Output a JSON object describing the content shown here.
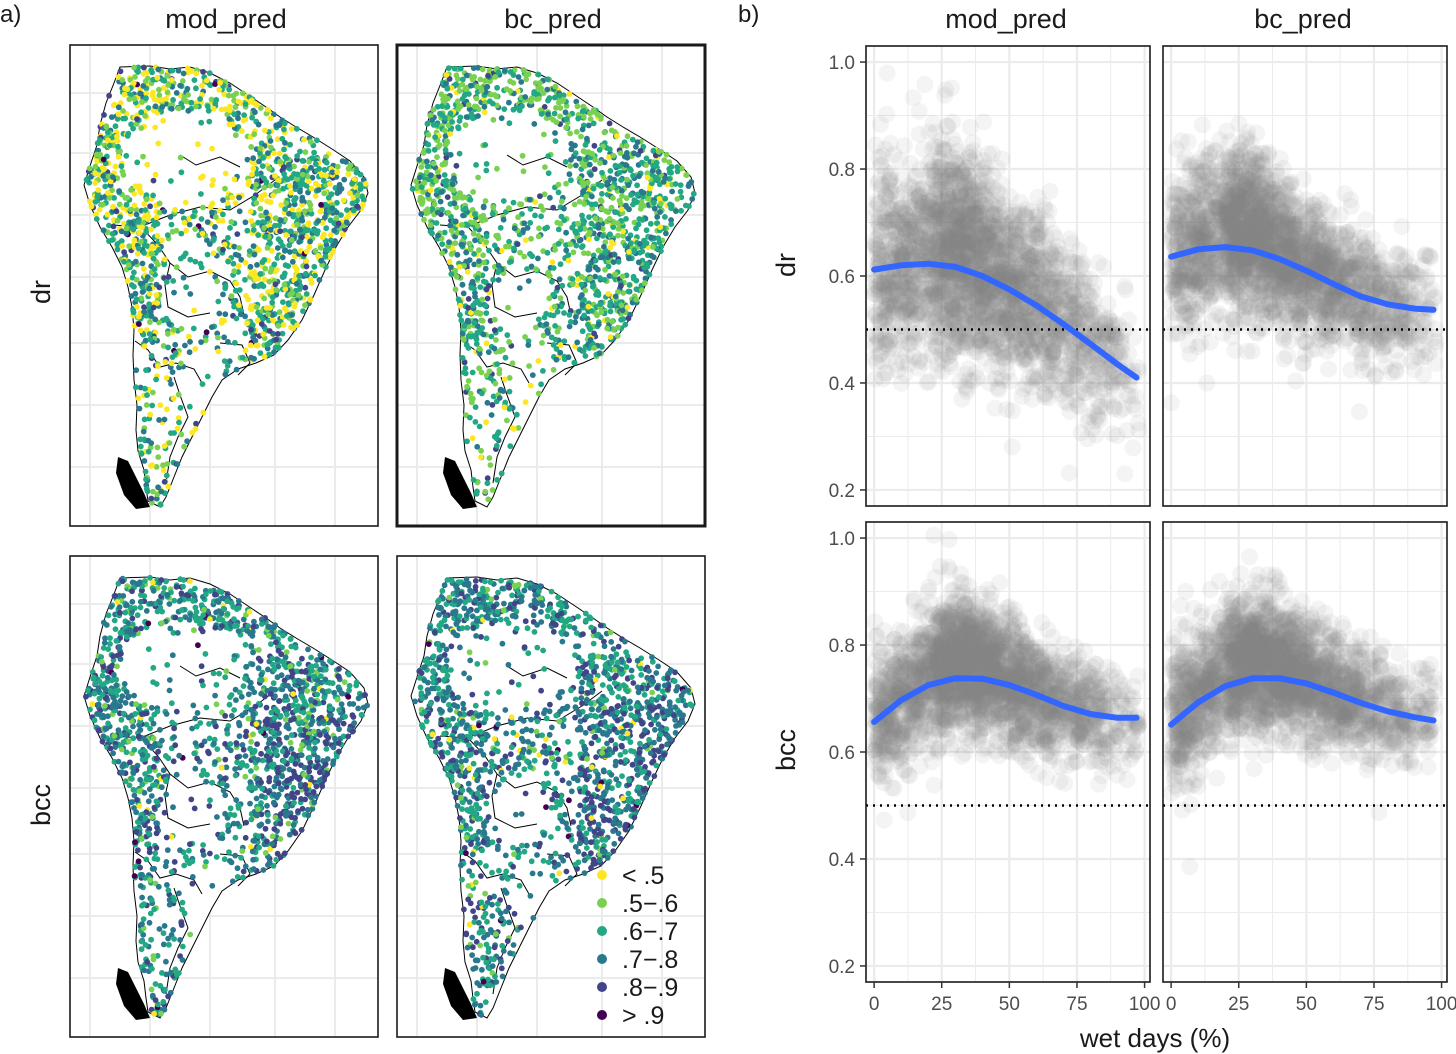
{
  "figure": {
    "panel_a_tag": "a)",
    "panel_b_tag": "b)",
    "col_labels": [
      "mod_pred",
      "bc_pred"
    ],
    "row_labels": [
      "dr",
      "bcc"
    ],
    "legend": [
      {
        "label": "< .5",
        "color": "#fde725"
      },
      {
        "label": ".5−.6",
        "color": "#7ad151"
      },
      {
        "label": ".6−.7",
        "color": "#22a884"
      },
      {
        "label": ".7−.8",
        "color": "#2a788e"
      },
      {
        "label": ".8−.9",
        "color": "#414487"
      },
      {
        "label": "> .9",
        "color": "#440154"
      }
    ],
    "colors": {
      "smooth": "#3366ff",
      "points": "#808080",
      "grid": "#ebebeb",
      "border": "#333333",
      "map_land": "#ffffff",
      "map_outline": "#000000"
    }
  },
  "chart_data": [
    {
      "type": "map",
      "title": "a)",
      "facets": [
        {
          "col": "mod_pred",
          "row": "dr",
          "dominant_classes": [
            "< .5",
            ".5−.6",
            ".6−.7",
            ".7−.8"
          ],
          "class_weights": [
            0.22,
            0.18,
            0.34,
            0.2,
            0.05,
            0.01
          ]
        },
        {
          "col": "bc_pred",
          "row": "dr",
          "dominant_classes": [
            ".5−.6",
            ".6−.7",
            ".7−.8"
          ],
          "class_weights": [
            0.07,
            0.3,
            0.37,
            0.22,
            0.04,
            0.0
          ]
        },
        {
          "col": "mod_pred",
          "row": "bcc",
          "dominant_classes": [
            ".6−.7",
            ".7−.8",
            ".8−.9"
          ],
          "class_weights": [
            0.02,
            0.06,
            0.34,
            0.38,
            0.19,
            0.01
          ]
        },
        {
          "col": "bc_pred",
          "row": "bcc",
          "dominant_classes": [
            ".6−.7",
            ".7−.8",
            ".8−.9"
          ],
          "class_weights": [
            0.02,
            0.05,
            0.34,
            0.39,
            0.19,
            0.01
          ]
        }
      ]
    },
    {
      "type": "scatter",
      "title": "b)",
      "xlabel": "wet days (%)",
      "xlim": [
        -3,
        102
      ],
      "ylim": [
        0.17,
        1.03
      ],
      "xticks": [
        0,
        25,
        50,
        75,
        100
      ],
      "yticks": [
        0.2,
        0.4,
        0.6,
        0.8,
        1.0
      ],
      "ytick_labels": [
        "0.2",
        "0.4",
        "0.6",
        "0.8",
        "1.0"
      ],
      "hline": 0.5,
      "facets": [
        {
          "col": "mod_pred",
          "row": "dr",
          "smooth": {
            "x": [
              0,
              10,
              20,
              30,
              40,
              50,
              60,
              70,
              80,
              90,
              97
            ],
            "y": [
              0.612,
              0.62,
              0.623,
              0.617,
              0.6,
              0.575,
              0.545,
              0.51,
              0.473,
              0.435,
              0.41
            ]
          },
          "cloud": {
            "x_center": 30,
            "y_center": 0.6,
            "y_spread": 0.11,
            "x_max": 98
          }
        },
        {
          "col": "bc_pred",
          "row": "dr",
          "smooth": {
            "x": [
              0,
              10,
              20,
              30,
              40,
              50,
              60,
              70,
              80,
              90,
              97
            ],
            "y": [
              0.636,
              0.65,
              0.654,
              0.648,
              0.632,
              0.61,
              0.585,
              0.562,
              0.547,
              0.539,
              0.537
            ]
          },
          "cloud": {
            "x_center": 28,
            "y_center": 0.64,
            "y_spread": 0.08,
            "x_max": 98
          }
        },
        {
          "col": "mod_pred",
          "row": "bcc",
          "smooth": {
            "x": [
              0,
              10,
              20,
              30,
              40,
              50,
              60,
              70,
              80,
              90,
              97
            ],
            "y": [
              0.656,
              0.697,
              0.725,
              0.738,
              0.737,
              0.725,
              0.707,
              0.686,
              0.671,
              0.664,
              0.664
            ]
          },
          "cloud": {
            "x_center": 30,
            "y_center": 0.72,
            "y_spread": 0.07,
            "x_max": 98
          }
        },
        {
          "col": "bc_pred",
          "row": "bcc",
          "smooth": {
            "x": [
              0,
              10,
              20,
              30,
              40,
              50,
              60,
              70,
              80,
              90,
              97
            ],
            "y": [
              0.651,
              0.693,
              0.723,
              0.738,
              0.738,
              0.728,
              0.711,
              0.692,
              0.676,
              0.665,
              0.659
            ]
          },
          "cloud": {
            "x_center": 30,
            "y_center": 0.72,
            "y_spread": 0.07,
            "x_max": 98
          }
        }
      ]
    }
  ]
}
